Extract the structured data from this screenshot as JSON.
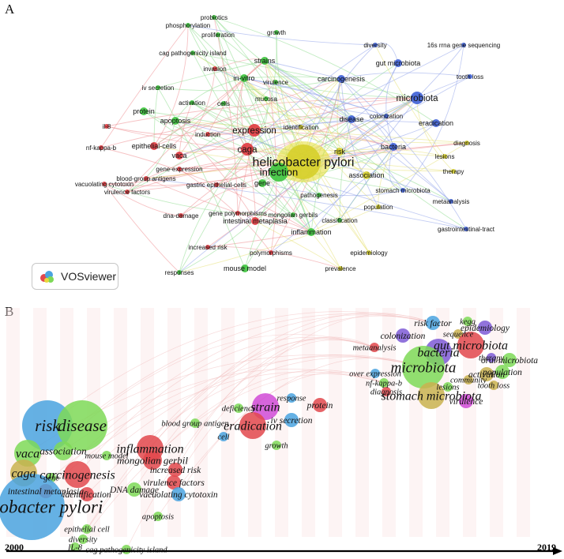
{
  "panelA": {
    "label": "A",
    "badge": "VOSviewer",
    "keywords": [
      {
        "t": "phosphorylation",
        "c": "green",
        "s": 0
      },
      {
        "t": "probiotics",
        "c": "green",
        "s": 0
      },
      {
        "t": "proliferation",
        "c": "green",
        "s": 0
      },
      {
        "t": "growth",
        "c": "green",
        "s": 0
      },
      {
        "t": "cag pathogenicity island",
        "c": "green",
        "s": 0
      },
      {
        "t": "strains",
        "c": "green",
        "s": 1
      },
      {
        "t": "invasion",
        "c": "red",
        "s": 0
      },
      {
        "t": "in-vitro",
        "c": "green",
        "s": 1
      },
      {
        "t": "virulence",
        "c": "green",
        "s": 0
      },
      {
        "t": "iv secretion",
        "c": "green",
        "s": 0
      },
      {
        "t": "mucosa",
        "c": "green",
        "s": 0
      },
      {
        "t": "activation",
        "c": "green",
        "s": 0
      },
      {
        "t": "cells",
        "c": "green",
        "s": 0
      },
      {
        "t": "protein",
        "c": "green",
        "s": 1
      },
      {
        "t": "apoptosis",
        "c": "green",
        "s": 1
      },
      {
        "t": "il-8",
        "c": "red",
        "s": 0
      },
      {
        "t": "expression",
        "c": "red",
        "s": 2
      },
      {
        "t": "induction",
        "c": "red",
        "s": 0
      },
      {
        "t": "identification",
        "c": "yellow",
        "s": 0
      },
      {
        "t": "nf-kappa-b",
        "c": "red",
        "s": 0
      },
      {
        "t": "epithelial-cells",
        "c": "red",
        "s": 1
      },
      {
        "t": "caga",
        "c": "red",
        "s": 2
      },
      {
        "t": "vaca",
        "c": "red",
        "s": 1
      },
      {
        "t": "gene-expression",
        "c": "red",
        "s": 0
      },
      {
        "t": "blood-group antigens",
        "c": "red",
        "s": 0
      },
      {
        "t": "vacuolating cytotoxin",
        "c": "red",
        "s": 0
      },
      {
        "t": "gastric epithelial-cells",
        "c": "red",
        "s": 0
      },
      {
        "t": "gene",
        "c": "green",
        "s": 1
      },
      {
        "t": "virulence factors",
        "c": "red",
        "s": 0
      },
      {
        "t": "helicobacter pylori",
        "c": "yellow",
        "s": 4
      },
      {
        "t": "infection",
        "c": "green",
        "s": 3
      },
      {
        "t": "risk",
        "c": "yellow",
        "s": 1
      },
      {
        "t": "association",
        "c": "yellow",
        "s": 1
      },
      {
        "t": "pathogenesis",
        "c": "green",
        "s": 0
      },
      {
        "t": "dna-damage",
        "c": "red",
        "s": 0
      },
      {
        "t": "gene polymorphisms",
        "c": "red",
        "s": 0
      },
      {
        "t": "intestinal metaplasia",
        "c": "red",
        "s": 1
      },
      {
        "t": "mongolian gerbils",
        "c": "green",
        "s": 0
      },
      {
        "t": "classification",
        "c": "green",
        "s": 0
      },
      {
        "t": "population",
        "c": "yellow",
        "s": 0
      },
      {
        "t": "inflammation",
        "c": "green",
        "s": 1
      },
      {
        "t": "increased risk",
        "c": "red",
        "s": 0
      },
      {
        "t": "polymorphisms",
        "c": "red",
        "s": 0
      },
      {
        "t": "epidemiology",
        "c": "yellow",
        "s": 0
      },
      {
        "t": "responses",
        "c": "green",
        "s": 0
      },
      {
        "t": "mouse model",
        "c": "green",
        "s": 1
      },
      {
        "t": "prevalence",
        "c": "yellow",
        "s": 0
      },
      {
        "t": "diversity",
        "c": "blue",
        "s": 0
      },
      {
        "t": "16s rrna gene sequencing",
        "c": "blue",
        "s": 0
      },
      {
        "t": "gut microbiota",
        "c": "blue",
        "s": 1
      },
      {
        "t": "carcinogenesis",
        "c": "blue",
        "s": 1
      },
      {
        "t": "tooth loss",
        "c": "blue",
        "s": 0
      },
      {
        "t": "microbiota",
        "c": "blue",
        "s": 2
      },
      {
        "t": "disease",
        "c": "blue",
        "s": 1
      },
      {
        "t": "colonization",
        "c": "blue",
        "s": 0
      },
      {
        "t": "eradication",
        "c": "blue",
        "s": 1
      },
      {
        "t": "bacteria",
        "c": "blue",
        "s": 1
      },
      {
        "t": "diagnosis",
        "c": "yellow",
        "s": 0
      },
      {
        "t": "lesions",
        "c": "yellow",
        "s": 0
      },
      {
        "t": "therapy",
        "c": "yellow",
        "s": 0
      },
      {
        "t": "stomach microbiota",
        "c": "blue",
        "s": 0
      },
      {
        "t": "metaanalysis",
        "c": "blue",
        "s": 0
      },
      {
        "t": "gastrointestinal-tract",
        "c": "blue",
        "s": 0
      }
    ]
  },
  "panelB": {
    "label": "B",
    "year_start": "2000",
    "year_end": "2019",
    "keywords": [
      {
        "t": "risk",
        "c": "#4aa3df",
        "s": 5
      },
      {
        "t": "disease",
        "c": "#7ed957",
        "s": 5
      },
      {
        "t": "vaca",
        "c": "#7ed957",
        "s": 3
      },
      {
        "t": "association",
        "c": "#7ed957",
        "s": 2
      },
      {
        "t": "caga",
        "c": "#c9b24f",
        "s": 3
      },
      {
        "t": "carcinogenesis",
        "c": "#e2484c",
        "s": 3
      },
      {
        "t": "mouse model",
        "c": "#7ed957",
        "s": 0
      },
      {
        "t": "mongolian gerbil",
        "c": "#e2484c",
        "s": 2
      },
      {
        "t": "inflammation",
        "c": "#e2484c",
        "s": 3
      },
      {
        "t": "increased risk",
        "c": "#e2484c",
        "s": 1
      },
      {
        "t": "gene",
        "c": "#7ed957",
        "s": 0
      },
      {
        "t": "intestinal metaplasia",
        "c": "#e2484c",
        "s": 1
      },
      {
        "t": "virulence factors",
        "c": "#e2484c",
        "s": 1
      },
      {
        "t": "DNA damage",
        "c": "#7ed957",
        "s": 1
      },
      {
        "t": "identification",
        "c": "#e2484c",
        "s": 1
      },
      {
        "t": "vacuolating cytotoxin",
        "c": "#4aa3df",
        "s": 1
      },
      {
        "t": "Helicobacter pylori",
        "c": "#4aa3df",
        "s": 6
      },
      {
        "t": "epithelial cell",
        "c": "#7ed957",
        "s": 0
      },
      {
        "t": "apoptosis",
        "c": "#7ed957",
        "s": 0
      },
      {
        "t": "diversity",
        "c": "#7ed957",
        "s": 0
      },
      {
        "t": "IL-8",
        "c": "#7ed957",
        "s": 0
      },
      {
        "t": "cag pathogenicity island",
        "c": "#7ed957",
        "s": 0
      },
      {
        "t": "deficiency",
        "c": "#7ed957",
        "s": 0
      },
      {
        "t": "strain",
        "c": "#d04ad6",
        "s": 3
      },
      {
        "t": "response",
        "c": "#4aa3df",
        "s": 0
      },
      {
        "t": "protein",
        "c": "#e2484c",
        "s": 1
      },
      {
        "t": "blood group antigen",
        "c": "#7ed957",
        "s": 0
      },
      {
        "t": "iv secretion",
        "c": "#4aa3df",
        "s": 1
      },
      {
        "t": "cell",
        "c": "#4aa3df",
        "s": 0
      },
      {
        "t": "eradication",
        "c": "#e2484c",
        "s": 3
      },
      {
        "t": "growth",
        "c": "#7ed957",
        "s": 0
      },
      {
        "t": "risk factor",
        "c": "#4aa3df",
        "s": 1
      },
      {
        "t": "kegg",
        "c": "#7ed957",
        "s": 0
      },
      {
        "t": "epidemiology",
        "c": "#7e5ad6",
        "s": 1
      },
      {
        "t": "colonization",
        "c": "#7e5ad6",
        "s": 1
      },
      {
        "t": "sequence",
        "c": "#c9b24f",
        "s": 0
      },
      {
        "t": "metaanalysis",
        "c": "#e2484c",
        "s": 0
      },
      {
        "t": "gut microbiota",
        "c": "#e2484c",
        "s": 3
      },
      {
        "t": "therapy",
        "c": "#7e5ad6",
        "s": 0
      },
      {
        "t": "bacteria",
        "c": "#7e5ad6",
        "s": 3
      },
      {
        "t": "oral microbiota",
        "c": "#7ed957",
        "s": 1
      },
      {
        "t": "microbiota",
        "c": "#7ed957",
        "s": 4
      },
      {
        "t": "activation",
        "c": "#c9b24f",
        "s": 1
      },
      {
        "t": "over expression",
        "c": "#4aa3df",
        "s": 0
      },
      {
        "t": "community",
        "c": "#c9b24f",
        "s": 0
      },
      {
        "t": "population",
        "c": "#7ed957",
        "s": 1
      },
      {
        "t": "nf-kappa-b",
        "c": "#7ed957",
        "s": 0
      },
      {
        "t": "lesions",
        "c": "#7ed957",
        "s": 0
      },
      {
        "t": "tooth loss",
        "c": "#c9b24f",
        "s": 0
      },
      {
        "t": "diagnosis",
        "c": "#e2484c",
        "s": 0
      },
      {
        "t": "stomach microbiota",
        "c": "#c9b24f",
        "s": 3
      },
      {
        "t": "virulence",
        "c": "#d04ad6",
        "s": 1
      }
    ]
  }
}
